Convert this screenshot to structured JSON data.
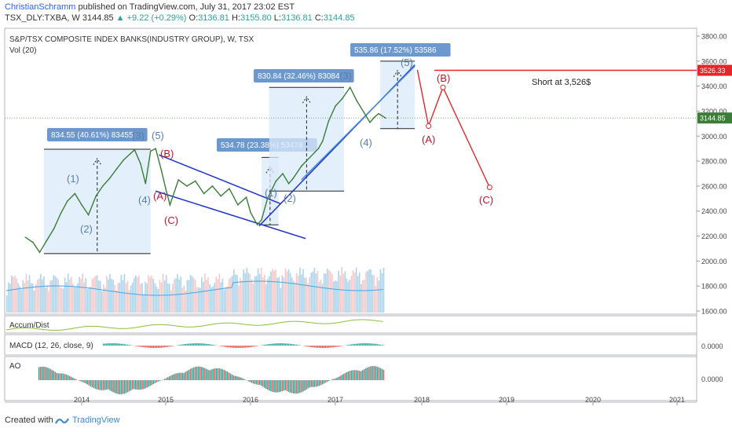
{
  "header": {
    "author": "ChristianSchramm",
    "published": "published on TradingView.com, July 31, 2017 23:02 EST",
    "symbol": "TSX_DLY:TXBA, W",
    "last": "3144.85",
    "change": "▲ +9.22 (+0.29%)",
    "o_label": "O:",
    "o": "3136.81",
    "h_label": "H:",
    "h": "3155.80",
    "l_label": "L:",
    "l": "3136.81",
    "c_label": "C:",
    "c": "3144.85"
  },
  "footer": {
    "created_with": "Created with",
    "brand": "TradingView"
  },
  "colors": {
    "up": "#26a69a",
    "down": "#ef5350",
    "price_line": "#3a7d35",
    "box_fill": "#dbe9fb",
    "wave_blue": "#5a7fa8",
    "wave_red": "#c0152b",
    "channel": "#1f35c9",
    "projection": "#e5252b",
    "label_bg": "#6b98cf"
  },
  "chart_data": {
    "type": "line",
    "title": "S&P/TSX COMPOSITE INDEX BANKS(INDUSTRY GROUP), W, TSX",
    "indicator_vol": "Vol (20)",
    "x_ticks": [
      "2014",
      "2015",
      "2016",
      "2017",
      "2018",
      "2019",
      "2020",
      "2021"
    ],
    "y_ticks": [
      "3800.00",
      "3600.00",
      "3400.00",
      "3200.00",
      "3000.00",
      "2800.00",
      "2600.00",
      "2400.00",
      "2200.00",
      "2000.00",
      "1800.00",
      "1600.00"
    ],
    "ylim": [
      1600,
      3850
    ],
    "price_series": [
      [
        2013.33,
        2190
      ],
      [
        2013.42,
        2150
      ],
      [
        2013.5,
        2070
      ],
      [
        2013.58,
        2160
      ],
      [
        2013.67,
        2260
      ],
      [
        2013.75,
        2380
      ],
      [
        2013.83,
        2480
      ],
      [
        2013.92,
        2540
      ],
      [
        2014.0,
        2450
      ],
      [
        2014.08,
        2370
      ],
      [
        2014.17,
        2520
      ],
      [
        2014.25,
        2600
      ],
      [
        2014.33,
        2660
      ],
      [
        2014.42,
        2740
      ],
      [
        2014.5,
        2810
      ],
      [
        2014.58,
        2860
      ],
      [
        2014.63,
        2890
      ],
      [
        2014.7,
        2780
      ],
      [
        2014.76,
        2620
      ],
      [
        2014.82,
        2880
      ],
      [
        2014.88,
        2900
      ],
      [
        2014.95,
        2720
      ],
      [
        2015.0,
        2580
      ],
      [
        2015.05,
        2450
      ],
      [
        2015.15,
        2650
      ],
      [
        2015.25,
        2600
      ],
      [
        2015.35,
        2640
      ],
      [
        2015.45,
        2540
      ],
      [
        2015.55,
        2600
      ],
      [
        2015.65,
        2520
      ],
      [
        2015.75,
        2580
      ],
      [
        2015.85,
        2450
      ],
      [
        2015.95,
        2510
      ],
      [
        2016.0,
        2390
      ],
      [
        2016.08,
        2290
      ],
      [
        2016.13,
        2330
      ],
      [
        2016.2,
        2500
      ],
      [
        2016.3,
        2640
      ],
      [
        2016.38,
        2700
      ],
      [
        2016.45,
        2620
      ],
      [
        2016.5,
        2660
      ],
      [
        2016.6,
        2760
      ],
      [
        2016.7,
        2830
      ],
      [
        2016.8,
        2900
      ],
      [
        2016.85,
        2960
      ],
      [
        2016.92,
        3120
      ],
      [
        2017.0,
        3240
      ],
      [
        2017.08,
        3300
      ],
      [
        2017.17,
        3390
      ],
      [
        2017.25,
        3280
      ],
      [
        2017.33,
        3190
      ],
      [
        2017.4,
        3110
      ],
      [
        2017.45,
        3150
      ],
      [
        2017.5,
        3180
      ],
      [
        2017.58,
        3144.85
      ]
    ],
    "measure_boxes": [
      {
        "label": "834.55 (40.61%) 83455"
      },
      {
        "label": "534.78 (23.38%) 53478"
      },
      {
        "label": "830.84 (32.46%) 83084"
      },
      {
        "label": "535.86 (17.52%) 53586"
      }
    ],
    "wave_labels_blue": [
      "(1)",
      "(2)",
      "(3)",
      "(4)",
      "(5)",
      "(1)",
      "(2)",
      "(3)",
      "(4)",
      "(5)"
    ],
    "wave_labels_red": [
      "(B)",
      "(A)",
      "(C)",
      "(A)",
      "(B)",
      "(C)"
    ],
    "projection_path": [
      [
        2017.95,
        3530
      ],
      [
        2018.08,
        3080
      ],
      [
        2018.25,
        3390
      ],
      [
        2018.8,
        2590
      ]
    ],
    "short_level": 3526.33,
    "short_level_label": "3526.33",
    "last_price_label": "3144.85",
    "annotation": "Short at 3,526$",
    "indicators": [
      {
        "name": "Accum/Dist"
      },
      {
        "name": "MACD (12, 26, close, 9)",
        "axis_label": "0.0000"
      },
      {
        "name": "AO",
        "axis_label": "0.0000"
      }
    ]
  }
}
